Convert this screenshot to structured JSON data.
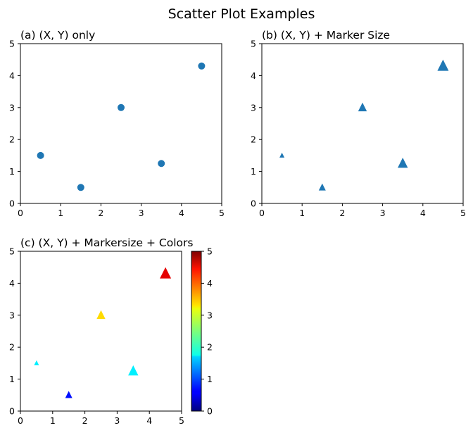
{
  "figure": {
    "suptitle": "Scatter Plot Examples",
    "marker_color": "#1f77b4",
    "colormap": "jet"
  },
  "chart_data": [
    {
      "type": "scatter",
      "title": "(a) (X, Y) only",
      "marker": "circle",
      "x": [
        0.5,
        1.5,
        2.5,
        3.5,
        4.5
      ],
      "y": [
        1.5,
        0.5,
        3.0,
        1.25,
        4.3
      ],
      "xlim": [
        0,
        5
      ],
      "ylim": [
        0,
        5
      ],
      "xticks": [
        "0",
        "1",
        "2",
        "3",
        "4",
        "5"
      ],
      "yticks": [
        "0",
        "1",
        "2",
        "3",
        "4",
        "5"
      ]
    },
    {
      "type": "scatter",
      "title": "(b) (X, Y) + Marker Size",
      "marker": "triangle",
      "x": [
        0.5,
        1.5,
        2.5,
        3.5,
        4.5
      ],
      "y": [
        1.5,
        0.5,
        3.0,
        1.25,
        4.3
      ],
      "sizes": [
        1,
        2,
        3,
        4,
        5
      ],
      "xlim": [
        0,
        5
      ],
      "ylim": [
        0,
        5
      ],
      "xticks": [
        "0",
        "1",
        "2",
        "3",
        "4",
        "5"
      ],
      "yticks": [
        "0",
        "1",
        "2",
        "3",
        "4",
        "5"
      ]
    },
    {
      "type": "scatter",
      "title": "(c) (X, Y) + Markersize + Colors",
      "marker": "triangle",
      "x": [
        0.5,
        1.5,
        2.5,
        3.5,
        4.5
      ],
      "y": [
        1.5,
        0.5,
        3.0,
        1.25,
        4.3
      ],
      "sizes": [
        1,
        2,
        3,
        4,
        5
      ],
      "colors": [
        1.8,
        0.7,
        3.3,
        1.8,
        4.5
      ],
      "clim": [
        0,
        5
      ],
      "xlim": [
        0,
        5
      ],
      "ylim": [
        0,
        5
      ],
      "xticks": [
        "0",
        "1",
        "2",
        "3",
        "4",
        "5"
      ],
      "yticks": [
        "0",
        "1",
        "2",
        "3",
        "4",
        "5"
      ],
      "colorbar_ticks": [
        "0",
        "1",
        "2",
        "3",
        "4",
        "5"
      ]
    }
  ]
}
